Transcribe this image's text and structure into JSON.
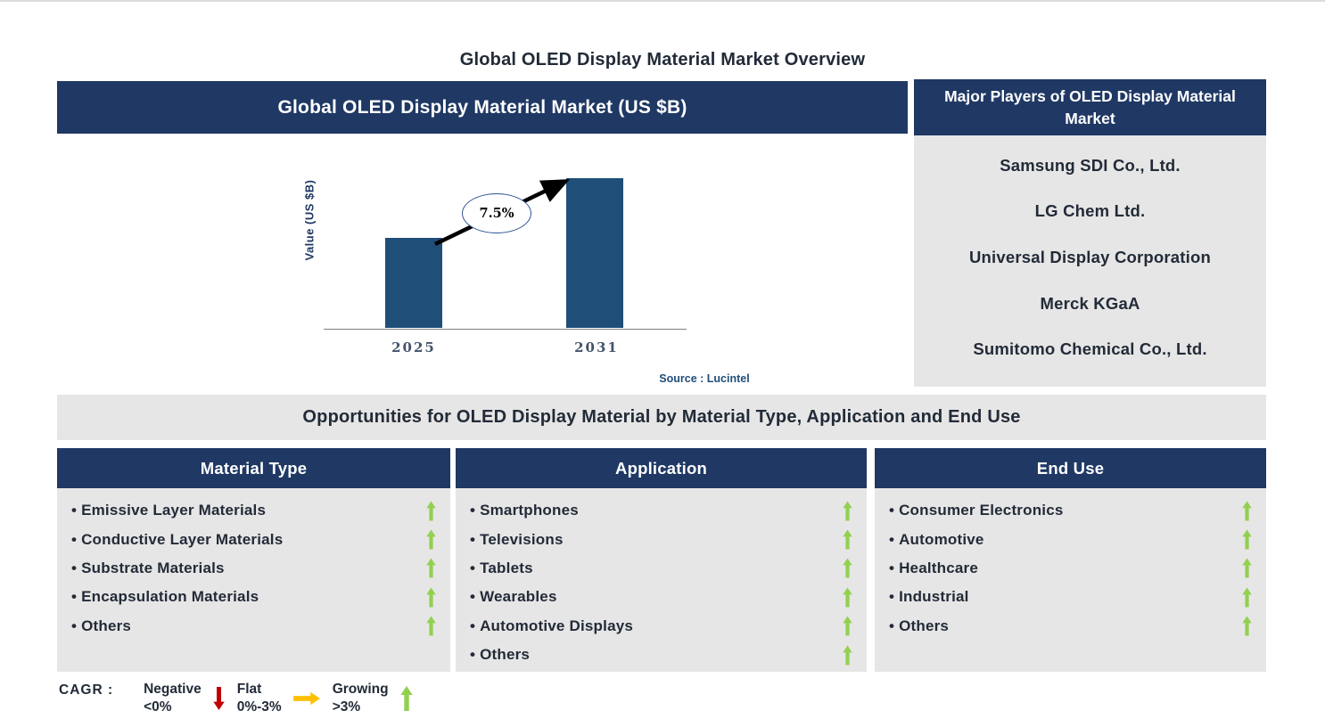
{
  "page_title": "Global OLED Display Material Market Overview",
  "colors": {
    "header_navy": "#1F3864",
    "bar_blue": "#1F4E79",
    "panel_gray": "#E7E6E6",
    "dark_text": "#222B38",
    "axis_text": "#44546A",
    "source_navy": "#1F4E79",
    "growing_green": "#92D050",
    "negative_red": "#C00000",
    "flat_amber": "#FFC000"
  },
  "market_chart_panel": {
    "header": "Global OLED Display Material Market (US $B)"
  },
  "chart_data": {
    "type": "bar",
    "title": "Global OLED Display Material Market (US $B)",
    "ylabel": "Value (US $B)",
    "xlabel": "",
    "categories": [
      "2025",
      "2031"
    ],
    "values_relative": [
      0.6,
      1.0
    ],
    "value_axis_ticks_shown": false,
    "bar_color": "#1F4E79",
    "cagr_label": "7.5%",
    "cagr_from": "2025",
    "cagr_to": "2031",
    "source": "Source : Lucintel"
  },
  "major_players_panel": {
    "header": "Major Players of OLED Display Material Market",
    "players": [
      "Samsung SDI Co., Ltd.",
      "LG Chem Ltd.",
      "Universal Display Corporation",
      "Merck KGaA",
      "Sumitomo Chemical Co., Ltd."
    ]
  },
  "opportunities_band": {
    "title": "Opportunities for OLED Display Material by Material Type, Application and End Use"
  },
  "opportunity_columns": [
    {
      "header": "Material Type",
      "items": [
        {
          "label": "Emissive Layer Materials",
          "trend": "growing"
        },
        {
          "label": "Conductive Layer Materials",
          "trend": "growing"
        },
        {
          "label": "Substrate Materials",
          "trend": "growing"
        },
        {
          "label": "Encapsulation Materials",
          "trend": "growing"
        },
        {
          "label": "Others",
          "trend": "growing"
        }
      ]
    },
    {
      "header": "Application",
      "items": [
        {
          "label": "Smartphones",
          "trend": "growing"
        },
        {
          "label": "Televisions",
          "trend": "growing"
        },
        {
          "label": "Tablets",
          "trend": "growing"
        },
        {
          "label": "Wearables",
          "trend": "growing"
        },
        {
          "label": "Automotive Displays",
          "trend": "growing"
        },
        {
          "label": "Others",
          "trend": "growing"
        }
      ]
    },
    {
      "header": "End Use",
      "items": [
        {
          "label": "Consumer Electronics",
          "trend": "growing"
        },
        {
          "label": "Automotive",
          "trend": "growing"
        },
        {
          "label": "Healthcare",
          "trend": "growing"
        },
        {
          "label": "Industrial",
          "trend": "growing"
        },
        {
          "label": "Others",
          "trend": "growing"
        }
      ]
    }
  ],
  "legend": {
    "prefix": "CAGR :",
    "entries": [
      {
        "label": "Negative",
        "range": "<0%",
        "arrow": "down",
        "color": "#C00000"
      },
      {
        "label": "Flat",
        "range": "0%-3%",
        "arrow": "right",
        "color": "#FFC000"
      },
      {
        "label": "Growing",
        "range": ">3%",
        "arrow": "up",
        "color": "#92D050"
      }
    ]
  }
}
